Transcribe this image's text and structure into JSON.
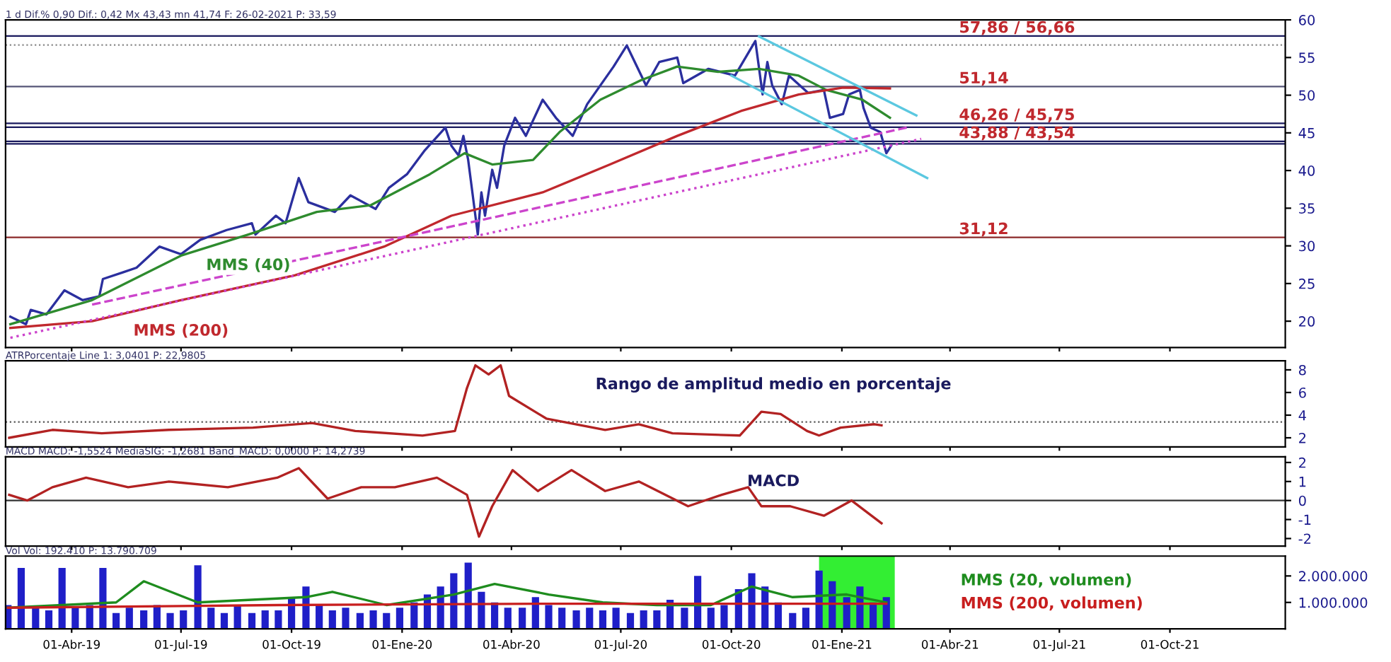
{
  "chart_data": [
    {
      "type": "line",
      "title": "1 d Dif.% 0,90 Dif.: 0,42 Mx 43,43 mn 41,74 F: 26-02-2021 P: 33,59",
      "xlim": [
        "2019-02-05",
        "2022-01-05"
      ],
      "xticks": [
        {
          "value": "2019-04-01",
          "label": null
        },
        {
          "value": "2019-07-01",
          "label": null
        },
        {
          "value": "2019-10-01",
          "label": null
        },
        {
          "value": "2020-01-01",
          "label": null
        },
        {
          "value": "2020-04-01",
          "label": null
        },
        {
          "value": "2020-07-01",
          "label": null
        },
        {
          "value": "2020-10-01",
          "label": null
        },
        {
          "value": "2021-01-01",
          "label": null
        },
        {
          "value": "2021-04-01",
          "label": null
        },
        {
          "value": "2021-07-01",
          "label": null
        },
        {
          "value": "2021-10-01",
          "label": null
        }
      ],
      "ylim": [
        16.5,
        60
      ],
      "yticks": [
        20,
        25,
        30,
        35,
        40,
        45,
        50,
        55,
        60
      ],
      "tick_labels": "y",
      "grid": false,
      "legend": false,
      "series": [
        {
          "color": "#2b2f9e",
          "x": [
            "2019-02-09",
            "2019-02-22",
            "2019-02-26",
            "2019-03-11",
            "2019-03-26",
            "2019-04-10",
            "2019-04-24",
            "2019-04-27",
            "2019-05-14",
            "2019-05-25",
            "2019-06-13",
            "2019-07-01",
            "2019-07-17",
            "2019-08-08",
            "2019-08-29",
            "2019-09-01",
            "2019-09-18",
            "2019-09-26",
            "2019-10-07",
            "2019-10-15",
            "2019-11-06",
            "2019-11-19",
            "2019-12-10",
            "2019-12-21",
            "2020-01-05",
            "2020-01-20",
            "2020-02-06",
            "2020-02-11",
            "2020-02-17",
            "2020-02-21",
            "2020-02-25",
            "2020-02-28",
            "2020-03-04",
            "2020-03-07",
            "2020-03-10",
            "2020-03-16",
            "2020-03-20",
            "2020-03-26",
            "2020-04-04",
            "2020-04-13",
            "2020-04-27",
            "2020-05-08",
            "2020-05-22",
            "2020-06-03",
            "2020-06-25",
            "2020-07-06",
            "2020-07-22",
            "2020-08-02",
            "2020-08-17",
            "2020-08-22",
            "2020-09-12",
            "2020-10-04",
            "2020-10-21",
            "2020-10-27",
            "2020-10-31",
            "2020-11-04",
            "2020-11-12",
            "2020-11-18",
            "2020-12-04",
            "2020-12-17",
            "2020-12-22",
            "2021-01-02",
            "2021-01-07",
            "2021-01-16",
            "2021-01-19",
            "2021-01-25",
            "2021-02-02",
            "2021-02-07",
            "2021-02-11"
          ],
          "values": [
            20.6,
            19.6,
            21.5,
            20.9,
            24.1,
            22.8,
            23.3,
            25.6,
            26.5,
            27.1,
            29.9,
            28.9,
            30.8,
            32.1,
            33,
            31.5,
            34,
            33,
            39,
            35.8,
            34.5,
            36.7,
            34.9,
            37.7,
            39.5,
            42.7,
            45.7,
            43.3,
            42,
            44.6,
            41.4,
            37.7,
            31.5,
            37.1,
            34,
            40.1,
            37.7,
            43.3,
            47,
            44.6,
            49.4,
            47,
            44.6,
            48.8,
            53.8,
            56.6,
            51.3,
            54.4,
            55,
            51.6,
            53.5,
            52.6,
            57.2,
            50.1,
            54.4,
            51.3,
            48.8,
            52.6,
            50.3,
            50.7,
            47,
            47.5,
            50.1,
            50.7,
            48.3,
            45.7,
            45.1,
            42.3,
            43.3
          ]
        },
        {
          "color": "#2e8b2e",
          "x": [
            "2019-02-09",
            "2019-04-18",
            "2019-07-01",
            "2019-08-26",
            "2019-10-22",
            "2019-12-06",
            "2020-01-24",
            "2020-02-22",
            "2020-03-16",
            "2020-04-19",
            "2020-05-11",
            "2020-06-14",
            "2020-07-18",
            "2020-08-17",
            "2020-09-20",
            "2020-10-24",
            "2020-11-26",
            "2020-12-19",
            "2021-01-18",
            "2021-02-10"
          ],
          "values": [
            19.6,
            22.8,
            28.7,
            31.5,
            34.5,
            35.4,
            39.5,
            42.3,
            40.8,
            41.4,
            45.1,
            49.4,
            52,
            53.8,
            53.1,
            53.5,
            52.6,
            50.7,
            49.4,
            47
          ]
        },
        {
          "color": "#c0282d",
          "x": [
            "2019-02-09",
            "2019-04-18",
            "2019-07-01",
            "2019-10-04",
            "2019-12-17",
            "2020-02-11",
            "2020-04-27",
            "2020-06-22",
            "2020-08-17",
            "2020-10-09",
            "2020-11-26",
            "2021-01-02",
            "2021-02-10"
          ],
          "values": [
            19.1,
            20,
            22.8,
            26.1,
            29.9,
            34,
            37.1,
            40.8,
            44.6,
            47.9,
            50.1,
            51,
            50.9
          ]
        },
        {
          "color": "#cc44cc",
          "line_style": "dotted",
          "x": [
            "2019-02-09",
            "2021-03-08"
          ],
          "values": [
            17.8,
            44.2
          ]
        },
        {
          "color": "#cc44cc",
          "line_style": "dashed",
          "x": [
            "2019-04-18",
            "2021-02-24"
          ],
          "values": [
            22.2,
            45.7
          ]
        },
        {
          "color": "#5bc8e0",
          "x": [
            "2020-10-24",
            "2021-03-04"
          ],
          "values": [
            57.8,
            47.3
          ]
        },
        {
          "color": "#5bc8e0",
          "x": [
            "2020-10-01",
            "2021-03-13"
          ],
          "values": [
            52.6,
            39
          ]
        }
      ],
      "ref_lines": [
        {
          "axis": "y",
          "value": 57.86,
          "label": "57,86 / 56,66",
          "color": "#1a1a5e",
          "line_style": "solid"
        },
        {
          "axis": "y",
          "value": 56.66,
          "color": "#888888",
          "line_style": "dotted"
        },
        {
          "axis": "y",
          "value": 51.14,
          "label": "51,14",
          "color": "#555577",
          "line_style": "solid"
        },
        {
          "axis": "y",
          "value": 46.26,
          "label": "46,26 / 45,75",
          "color": "#1a1a5e",
          "line_style": "solid"
        },
        {
          "axis": "y",
          "value": 45.75,
          "color": "#1a1a5e",
          "line_style": "solid"
        },
        {
          "axis": "y",
          "value": 43.88,
          "label": "43,88 / 43,54",
          "color": "#1a1a5e",
          "line_style": "solid"
        },
        {
          "axis": "y",
          "value": 43.54,
          "color": "#1a1a5e",
          "line_style": "solid"
        },
        {
          "axis": "y",
          "value": 31.12,
          "label": "31,12",
          "color": "#8b2a2a",
          "line_style": "solid"
        }
      ],
      "annotations": [
        {
          "text": "MMS (40)",
          "x": "2019-08-26",
          "y": 31.5
        },
        {
          "text": "MMS (200)",
          "x": "2019-07-01",
          "y": 22.8
        }
      ]
    },
    {
      "type": "line",
      "title": "ATRPorcentaje Line 1: 3,0401 P: 22,9805",
      "xlim": [
        "2019-02-05",
        "2022-01-05"
      ],
      "xticks": [
        {
          "value": "2019-04-01",
          "label": null
        },
        {
          "value": "2019-07-01",
          "label": null
        },
        {
          "value": "2019-10-01",
          "label": null
        },
        {
          "value": "2020-01-01",
          "label": null
        },
        {
          "value": "2020-04-01",
          "label": null
        },
        {
          "value": "2020-07-01",
          "label": null
        },
        {
          "value": "2020-10-01",
          "label": null
        },
        {
          "value": "2021-01-01",
          "label": null
        },
        {
          "value": "2021-04-01",
          "label": null
        },
        {
          "value": "2021-07-01",
          "label": null
        },
        {
          "value": "2021-10-01",
          "label": null
        }
      ],
      "ylim": [
        1.2,
        8.8
      ],
      "yticks": [
        2,
        4,
        6,
        8
      ],
      "tick_labels": "y",
      "grid": false,
      "legend": false,
      "series": [
        {
          "color": "#b22222",
          "x": [
            "2019-02-08",
            "2019-03-16",
            "2019-04-26",
            "2019-06-21",
            "2019-08-30",
            "2019-10-18",
            "2019-11-23",
            "2020-01-18",
            "2020-02-14",
            "2020-02-24",
            "2020-03-02",
            "2020-03-13",
            "2020-03-23",
            "2020-03-30",
            "2020-04-30",
            "2020-06-18",
            "2020-07-16",
            "2020-08-13",
            "2020-10-08",
            "2020-10-26",
            "2020-11-11",
            "2020-12-03",
            "2020-12-13",
            "2020-12-31",
            "2021-01-28",
            "2021-02-03"
          ],
          "values": [
            2.0,
            2.7,
            2.4,
            2.7,
            2.9,
            3.3,
            2.6,
            2.2,
            2.6,
            6.4,
            8.4,
            7.6,
            8.4,
            5.7,
            3.7,
            2.7,
            3.2,
            2.4,
            2.2,
            4.3,
            4.1,
            2.6,
            2.2,
            2.9,
            3.2,
            3.1
          ]
        }
      ],
      "ref_lines": [
        {
          "axis": "y",
          "value": 3.4,
          "color": "#555555",
          "line_style": "dotted"
        }
      ],
      "annotations": [
        "Rango de amplitud medio en porcentaje"
      ]
    },
    {
      "type": "line",
      "title": "MACD MACD: -1,5524 MediaSIG: -1,2681 Band_MACD: 0,0000 P: 14,2739",
      "xlim": [
        "2019-02-05",
        "2022-01-05"
      ],
      "xticks": [
        {
          "value": "2019-04-01",
          "label": null
        },
        {
          "value": "2019-07-01",
          "label": null
        },
        {
          "value": "2019-10-01",
          "label": null
        },
        {
          "value": "2020-01-01",
          "label": null
        },
        {
          "value": "2020-04-01",
          "label": null
        },
        {
          "value": "2020-07-01",
          "label": null
        },
        {
          "value": "2020-10-01",
          "label": null
        },
        {
          "value": "2021-01-01",
          "label": null
        },
        {
          "value": "2021-04-01",
          "label": null
        },
        {
          "value": "2021-07-01",
          "label": null
        },
        {
          "value": "2021-10-01",
          "label": null
        }
      ],
      "ylim": [
        -2.4,
        2.3
      ],
      "yticks": [
        {
          "value": -2,
          "label": "-2"
        },
        {
          "value": -1,
          "label": "-1"
        },
        0,
        1,
        2
      ],
      "tick_labels": "y",
      "grid": false,
      "legend": false,
      "series": [
        {
          "color": "#b22222",
          "x": [
            "2019-02-08",
            "2019-02-23",
            "2019-03-16",
            "2019-04-13",
            "2019-05-18",
            "2019-06-21",
            "2019-08-09",
            "2019-09-19",
            "2019-10-07",
            "2019-10-31",
            "2019-11-28",
            "2019-12-26",
            "2020-01-30",
            "2020-02-24",
            "2020-03-05",
            "2020-03-16",
            "2020-04-02",
            "2020-04-23",
            "2020-05-21",
            "2020-06-18",
            "2020-07-16",
            "2020-08-26",
            "2020-09-23",
            "2020-10-15",
            "2020-10-26",
            "2020-11-19",
            "2020-12-17",
            "2021-01-09",
            "2021-02-03"
          ],
          "values": [
            0.3,
            0,
            0.7,
            1.2,
            0.7,
            1.0,
            0.7,
            1.2,
            1.7,
            0.1,
            0.7,
            0.7,
            1.2,
            0.3,
            -1.9,
            -0.3,
            1.6,
            0.5,
            1.6,
            0.5,
            1.0,
            -0.3,
            0.3,
            0.7,
            -0.3,
            -0.3,
            -0.8,
            0,
            -1.2
          ]
        }
      ],
      "ref_lines": [
        {
          "axis": "y",
          "value": 0,
          "color": "#333333",
          "line_style": "solid"
        }
      ],
      "annotations": [
        "MACD"
      ]
    },
    {
      "type": "bar",
      "title": "Vol Vol: 192.410 P: 13.790.709",
      "xlim": [
        "2019-02-05",
        "2022-01-05"
      ],
      "xticks": [
        {
          "value": "2019-04-01",
          "label": "01-Abr-19"
        },
        {
          "value": "2019-07-01",
          "label": "01-Jul-19"
        },
        {
          "value": "2019-10-01",
          "label": "01-Oct-19"
        },
        {
          "value": "2020-01-01",
          "label": "01-Ene-20"
        },
        {
          "value": "2020-04-01",
          "label": "01-Abr-20"
        },
        {
          "value": "2020-07-01",
          "label": "01-Jul-20"
        },
        {
          "value": "2020-10-01",
          "label": "01-Oct-20"
        },
        {
          "value": "2021-01-01",
          "label": "01-Ene-21"
        },
        {
          "value": "2021-04-01",
          "label": "01-Abr-21"
        },
        {
          "value": "2021-07-01",
          "label": "01-Jul-21"
        },
        {
          "value": "2021-10-01",
          "label": "01-Oct-21"
        }
      ],
      "ylim": [
        0,
        2750000
      ],
      "yticks": [
        {
          "value": 1000000,
          "label": "1.000.000"
        },
        {
          "value": 2000000,
          "label": "2.000.000"
        }
      ],
      "grid": false,
      "legend": "right",
      "x": [
        "2019-02-07",
        "2019-02-18",
        "2019-03-02",
        "2019-03-13",
        "2019-03-24",
        "2019-04-04",
        "2019-04-16",
        "2019-04-27",
        "2019-05-08",
        "2019-05-19",
        "2019-05-31",
        "2019-06-11",
        "2019-06-22",
        "2019-07-03",
        "2019-07-15",
        "2019-07-26",
        "2019-08-06",
        "2019-08-17",
        "2019-08-29",
        "2019-09-09",
        "2019-09-20",
        "2019-10-01",
        "2019-10-13",
        "2019-10-24",
        "2019-11-04",
        "2019-11-15",
        "2019-11-27",
        "2019-12-08",
        "2019-12-19",
        "2019-12-30",
        "2020-01-11",
        "2020-01-22",
        "2020-02-02",
        "2020-02-13",
        "2020-02-25",
        "2020-03-07",
        "2020-03-18",
        "2020-03-29",
        "2020-04-10",
        "2020-04-21",
        "2020-05-02",
        "2020-05-13",
        "2020-05-25",
        "2020-06-05",
        "2020-06-16",
        "2020-06-27",
        "2020-07-09",
        "2020-07-20",
        "2020-07-31",
        "2020-08-11",
        "2020-08-23",
        "2020-09-03",
        "2020-09-14",
        "2020-09-25",
        "2020-10-07",
        "2020-10-18",
        "2020-10-29",
        "2020-11-09",
        "2020-11-21",
        "2020-12-02",
        "2020-12-13",
        "2020-12-24",
        "2021-01-05",
        "2021-01-16",
        "2021-01-27",
        "2021-02-07"
      ],
      "series": [
        {
          "color": "#1f1fc8",
          "values": [
            900000,
            2300000,
            800000,
            700000,
            2300000,
            800000,
            900000,
            2300000,
            600000,
            800000,
            700000,
            900000,
            600000,
            700000,
            2400000,
            800000,
            600000,
            900000,
            600000,
            700000,
            700000,
            1200000,
            1600000,
            900000,
            700000,
            800000,
            600000,
            700000,
            600000,
            800000,
            1000000,
            1300000,
            1600000,
            2100000,
            2500000,
            1400000,
            1000000,
            800000,
            800000,
            1200000,
            900000,
            800000,
            700000,
            800000,
            700000,
            800000,
            600000,
            700000,
            700000,
            1100000,
            800000,
            2000000,
            800000,
            900000,
            1500000,
            2100000,
            1600000,
            1000000,
            600000,
            800000,
            2200000,
            1800000,
            1200000,
            1600000,
            1000000,
            1200000
          ]
        },
        {
          "type": "line",
          "name": "MMS (20, volumen)",
          "color": "#1e8c1e",
          "x": [
            "2019-02-07",
            "2019-05-08",
            "2019-05-31",
            "2019-07-15",
            "2019-10-13",
            "2019-11-04",
            "2019-12-19",
            "2020-02-13",
            "2020-03-18",
            "2020-05-02",
            "2020-06-16",
            "2020-07-31",
            "2020-09-14",
            "2020-10-18",
            "2020-11-21",
            "2021-01-05",
            "2021-02-07"
          ],
          "values": [
            800000,
            1000000,
            1800000,
            1000000,
            1200000,
            1400000,
            900000,
            1300000,
            1700000,
            1300000,
            1000000,
            900000,
            900000,
            1600000,
            1200000,
            1300000,
            1000000
          ]
        },
        {
          "type": "line",
          "name": "MMS (200, volumen)",
          "color": "#c81e1e",
          "x": [
            "2019-02-07",
            "2019-09-20",
            "2020-05-02",
            "2021-02-07"
          ],
          "values": [
            800000,
            900000,
            950000,
            950000
          ]
        }
      ],
      "bands": [
        {
          "axis": "x",
          "from": "2020-12-13",
          "to": "2021-02-14",
          "color": "#33ee33"
        }
      ]
    }
  ]
}
